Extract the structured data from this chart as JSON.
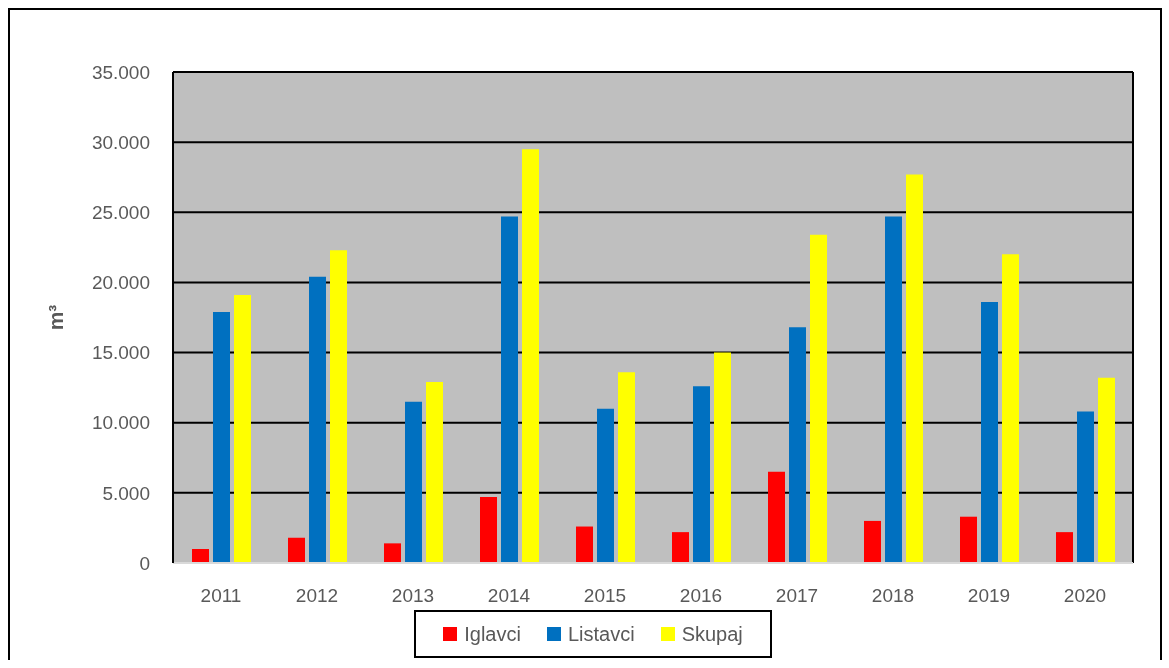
{
  "chart_data": {
    "type": "bar",
    "ylabel": "m³",
    "categories": [
      "2011",
      "2012",
      "2013",
      "2014",
      "2015",
      "2016",
      "2017",
      "2018",
      "2019",
      "2020"
    ],
    "series": [
      {
        "name": "Iglavci",
        "color": "#ff0000",
        "values": [
          1000,
          1800,
          1400,
          4700,
          2600,
          2200,
          6500,
          3000,
          3300,
          2200
        ]
      },
      {
        "name": "Listavci",
        "color": "#0070c0",
        "values": [
          17900,
          20400,
          11500,
          24700,
          11000,
          12600,
          16800,
          24700,
          18600,
          10800
        ]
      },
      {
        "name": "Skupaj",
        "color": "#ffff00",
        "values": [
          19100,
          22300,
          12900,
          29500,
          13600,
          15000,
          23400,
          27700,
          22000,
          13200
        ]
      }
    ],
    "ylim": [
      0,
      35000
    ],
    "yticks": [
      0,
      {
        "value": 5000,
        "label": "5.000"
      },
      {
        "value": 10000,
        "label": "10.000"
      },
      {
        "value": 15000,
        "label": "15.000"
      },
      {
        "value": 20000,
        "label": "20.000"
      },
      {
        "value": 25000,
        "label": "25.000"
      },
      {
        "value": 30000,
        "label": "30.000"
      },
      {
        "value": 35000,
        "label": "35.000"
      }
    ],
    "grid": "y",
    "legend": "bottom"
  }
}
